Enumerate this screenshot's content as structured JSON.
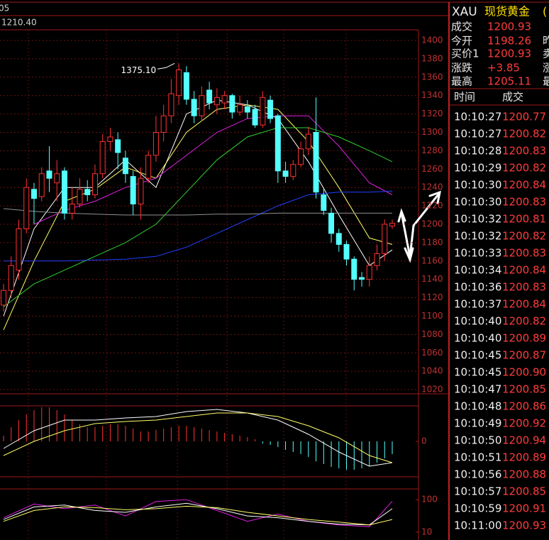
{
  "chart_data": [
    {
      "type": "candlestick",
      "readout_prefix": "05",
      "readout": "1210.40",
      "xlim": [
        0,
        51
      ],
      "ylim": [
        1015.4,
        1411.6
      ],
      "yticks": [
        1020,
        1040,
        1060,
        1080,
        1100,
        1120,
        1140,
        1160,
        1180,
        1200,
        1220,
        1240,
        1260,
        1280,
        1300,
        1320,
        1340,
        1360,
        1380,
        1400
      ],
      "grid": true,
      "up_color": "#ff3232",
      "down_color": "#54ffff",
      "open": [
        1112,
        1128,
        1150,
        1195,
        1238,
        1230,
        1258,
        1245,
        1258,
        1212,
        1222,
        1238,
        1232,
        1255,
        1290,
        1292,
        1272,
        1252,
        1222,
        1250,
        1275,
        1300,
        1318,
        1340,
        1365,
        1336,
        1318,
        1346,
        1330,
        1332,
        1340,
        1322,
        1328,
        1325,
        1308,
        1335,
        1318,
        1258,
        1252,
        1265,
        1282,
        1300,
        1232,
        1212,
        1190,
        1178,
        1162,
        1142,
        1140,
        1155,
        1168,
        1198
      ],
      "high": [
        1135,
        1165,
        1205,
        1250,
        1245,
        1262,
        1285,
        1270,
        1262,
        1240,
        1250,
        1248,
        1265,
        1298,
        1305,
        1300,
        1280,
        1258,
        1262,
        1280,
        1318,
        1330,
        1358,
        1375.1,
        1372,
        1345,
        1350,
        1355,
        1348,
        1345,
        1342,
        1340,
        1335,
        1330,
        1345,
        1340,
        1320,
        1268,
        1270,
        1290,
        1306,
        1338,
        1240,
        1218,
        1195,
        1182,
        1165,
        1148,
        1165,
        1178,
        1205,
        1205
      ],
      "low": [
        1105,
        1120,
        1140,
        1190,
        1200,
        1225,
        1235,
        1225,
        1205,
        1205,
        1218,
        1225,
        1228,
        1250,
        1280,
        1260,
        1245,
        1210,
        1205,
        1245,
        1268,
        1290,
        1310,
        1330,
        1330,
        1310,
        1312,
        1325,
        1320,
        1325,
        1315,
        1318,
        1315,
        1305,
        1305,
        1310,
        1245,
        1245,
        1248,
        1262,
        1275,
        1228,
        1210,
        1180,
        1170,
        1155,
        1128,
        1132,
        1132,
        1150,
        1160,
        1195
      ],
      "close": [
        1128,
        1155,
        1195,
        1240,
        1228,
        1255,
        1250,
        1255,
        1212,
        1222,
        1238,
        1232,
        1255,
        1290,
        1295,
        1278,
        1255,
        1222,
        1250,
        1275,
        1300,
        1318,
        1342,
        1368,
        1336,
        1318,
        1340,
        1332,
        1338,
        1340,
        1322,
        1330,
        1322,
        1308,
        1338,
        1315,
        1258,
        1252,
        1265,
        1282,
        1298,
        1235,
        1215,
        1190,
        1178,
        1162,
        1140,
        1140,
        1155,
        1168,
        1200,
        1201
      ],
      "annotation": "1375.10",
      "series": [
        {
          "color": "#ffffff",
          "x": [
            0,
            4,
            8,
            12,
            16,
            20,
            24,
            28,
            32,
            36,
            40,
            44,
            48,
            51
          ],
          "values": [
            1100,
            1195,
            1240,
            1240,
            1270,
            1240,
            1320,
            1335,
            1330,
            1315,
            1268,
            1210,
            1155,
            1172
          ]
        },
        {
          "color": "#ffff66",
          "x": [
            0,
            4,
            8,
            12,
            16,
            20,
            24,
            28,
            32,
            36,
            40,
            44,
            48,
            51
          ],
          "values": [
            1085,
            1160,
            1225,
            1238,
            1262,
            1250,
            1300,
            1325,
            1330,
            1325,
            1290,
            1240,
            1185,
            1178
          ]
        },
        {
          "color": "#e020e0",
          "x": [
            0,
            4,
            8,
            12,
            16,
            20,
            24,
            28,
            32,
            36,
            40,
            44,
            48,
            51
          ],
          "values": [
            null,
            1200,
            1215,
            1225,
            1240,
            1250,
            1275,
            1300,
            1315,
            1318,
            1318,
            1285,
            1245,
            1232
          ]
        },
        {
          "color": "#30d030",
          "x": [
            0,
            4,
            8,
            12,
            16,
            20,
            24,
            28,
            32,
            36,
            40,
            44,
            48,
            51
          ],
          "values": [
            1110,
            1135,
            1150,
            1165,
            1180,
            1200,
            1235,
            1270,
            1295,
            1305,
            1305,
            1295,
            1280,
            1268
          ]
        },
        {
          "color": "#2040ff",
          "x": [
            0,
            4,
            8,
            12,
            16,
            20,
            24,
            28,
            32,
            36,
            40,
            44,
            48,
            51
          ],
          "values": [
            1160,
            1160,
            1160,
            1161,
            1162,
            1165,
            1175,
            1190,
            1205,
            1220,
            1232,
            1235,
            1235,
            1236
          ]
        },
        {
          "color": "#909090",
          "x": [
            0,
            4,
            8,
            12,
            16,
            20,
            24,
            28,
            32,
            36,
            40,
            44,
            48,
            51
          ],
          "values": [
            1217,
            1214,
            1212,
            1211,
            1210,
            1210,
            1210,
            1211,
            1211,
            1212,
            1212,
            1212,
            1212,
            1212
          ]
        }
      ]
    },
    {
      "type": "macd",
      "xlim": [
        0,
        51
      ],
      "ylim": [
        -50,
        50
      ],
      "yticks": [
        0
      ],
      "up_color": "#ff3232",
      "down_color": "#54ffff",
      "values": [
        8,
        20,
        30,
        38,
        44,
        48,
        48,
        44,
        38,
        30,
        24,
        20,
        20,
        22,
        24,
        24,
        22,
        18,
        14,
        14,
        16,
        18,
        20,
        22,
        22,
        20,
        18,
        16,
        14,
        12,
        10,
        8,
        6,
        3,
        -3,
        -5,
        -8,
        -12,
        -15,
        -18,
        -22,
        -28,
        -32,
        -36,
        -38,
        -40,
        -40,
        -38,
        -35,
        -30,
        -24,
        -18
      ],
      "series": [
        {
          "color": "#ffffff",
          "x": [
            0,
            4,
            8,
            12,
            16,
            20,
            24,
            28,
            32,
            36,
            40,
            44,
            48,
            51
          ],
          "values": [
            -10,
            15,
            30,
            30,
            33,
            35,
            42,
            45,
            40,
            30,
            10,
            -15,
            -35,
            -30
          ]
        },
        {
          "color": "#ffff66",
          "x": [
            0,
            4,
            8,
            12,
            16,
            20,
            24,
            28,
            32,
            36,
            40,
            44,
            48,
            51
          ],
          "values": [
            -20,
            0,
            15,
            25,
            28,
            30,
            35,
            40,
            40,
            35,
            22,
            5,
            -20,
            -30
          ]
        }
      ]
    },
    {
      "type": "line",
      "xlim": [
        0,
        51
      ],
      "ylim": [
        -6,
        130
      ],
      "yticks": [
        100,
        10
      ],
      "series": [
        {
          "color": "#e020e0",
          "x": [
            0,
            4,
            8,
            12,
            16,
            20,
            24,
            28,
            32,
            36,
            40,
            44,
            48,
            51
          ],
          "values": [
            50,
            88,
            75,
            85,
            55,
            95,
            100,
            70,
            40,
            60,
            40,
            30,
            25,
            96
          ]
        },
        {
          "color": "#ffffff",
          "x": [
            0,
            4,
            8,
            12,
            16,
            20,
            24,
            28,
            32,
            36,
            40,
            44,
            48,
            51
          ],
          "values": [
            45,
            80,
            85,
            70,
            65,
            80,
            90,
            75,
            55,
            50,
            40,
            32,
            30,
            75
          ]
        },
        {
          "color": "#ffff66",
          "x": [
            0,
            4,
            8,
            12,
            16,
            20,
            24,
            28,
            32,
            36,
            40,
            44,
            48,
            51
          ],
          "values": [
            40,
            70,
            80,
            78,
            72,
            75,
            82,
            78,
            65,
            55,
            45,
            38,
            30,
            45
          ]
        }
      ]
    }
  ],
  "quote_panel": {
    "symbol": "XAU",
    "name": "现货黄金",
    "name_suffix": "(",
    "rows": [
      {
        "label": "成交",
        "value": "1200.93"
      },
      {
        "label": "今开",
        "value": "1198.26",
        "label2": "昨"
      },
      {
        "label": "买价1",
        "value": "1200.93",
        "label2": "卖"
      },
      {
        "label": "涨跌",
        "value": "+3.85",
        "label2": "涨"
      },
      {
        "label": "最高",
        "value": "1205.11",
        "label2": "最"
      }
    ]
  },
  "trades": {
    "headers": [
      "时间",
      "成交"
    ],
    "rows": [
      [
        "10:10:27",
        "1200.77"
      ],
      [
        "10:10:27",
        "1200.82"
      ],
      [
        "10:10:28",
        "1200.83"
      ],
      [
        "10:10:29",
        "1200.82"
      ],
      [
        "10:10:30",
        "1200.84"
      ],
      [
        "10:10:30",
        "1200.83"
      ],
      [
        "10:10:32",
        "1200.81"
      ],
      [
        "10:10:32",
        "1200.82"
      ],
      [
        "10:10:33",
        "1200.83"
      ],
      [
        "10:10:34",
        "1200.84"
      ],
      [
        "10:10:36",
        "1200.83"
      ],
      [
        "10:10:37",
        "1200.84"
      ],
      [
        "10:10:40",
        "1200.82"
      ],
      [
        "10:10:40",
        "1200.89"
      ],
      [
        "10:10:45",
        "1200.87"
      ],
      [
        "10:10:45",
        "1200.90"
      ],
      [
        "10:10:47",
        "1200.85"
      ],
      [
        "10:10:48",
        "1200.86"
      ],
      [
        "10:10:49",
        "1200.92"
      ],
      [
        "10:10:50",
        "1200.94"
      ],
      [
        "10:10:51",
        "1200.89"
      ],
      [
        "10:10:56",
        "1200.88"
      ],
      [
        "10:10:57",
        "1200.85"
      ],
      [
        "10:10:59",
        "1200.91"
      ],
      [
        "10:11:00",
        "1200.93"
      ]
    ]
  }
}
